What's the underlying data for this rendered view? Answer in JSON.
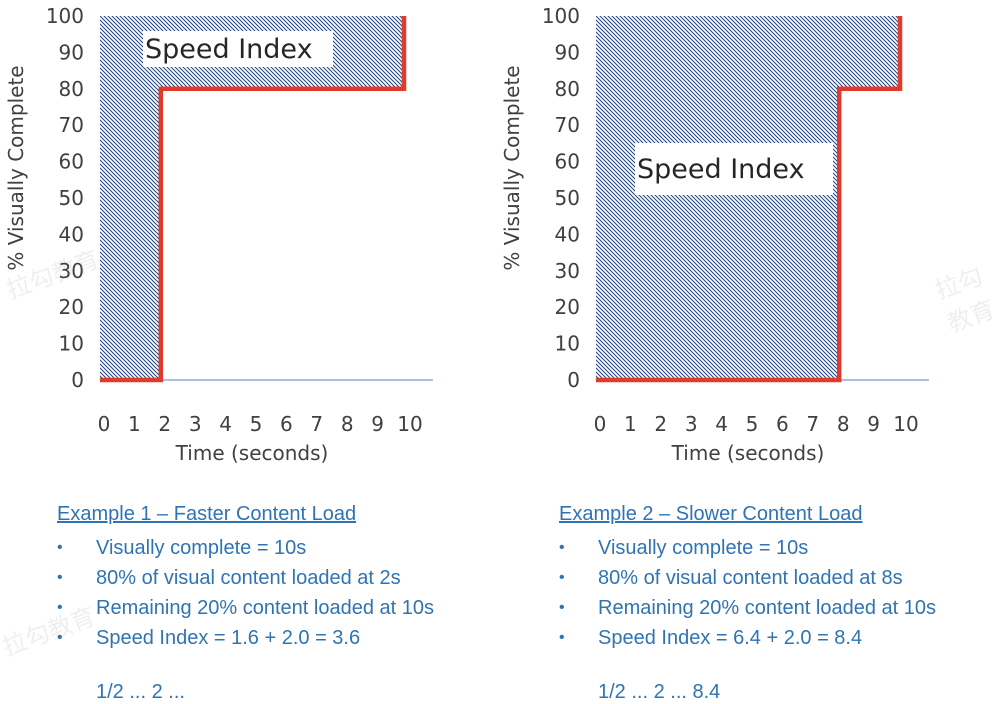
{
  "colors": {
    "step_line": "#e03a2b",
    "hatch": "#1f3f8a",
    "axis": "#8faadc",
    "text_blue": "#2e74b5"
  },
  "chart_data": [
    {
      "type": "line",
      "ylabel": "% Visually Complete",
      "xlabel": "Time (seconds)",
      "xlim": [
        0,
        10
      ],
      "ylim": [
        0,
        100
      ],
      "x_ticks": [
        "0",
        "1",
        "2",
        "3",
        "4",
        "5",
        "6",
        "7",
        "8",
        "9",
        "10"
      ],
      "y_ticks": [
        "0",
        "10",
        "20",
        "30",
        "40",
        "50",
        "60",
        "70",
        "80",
        "90",
        "100"
      ],
      "series": [
        {
          "x": [
            0,
            2,
            2,
            10,
            10
          ],
          "y": [
            0,
            0,
            80,
            80,
            100
          ]
        }
      ],
      "shaded_area": "Speed Index",
      "annotation": "Speed Index"
    },
    {
      "type": "line",
      "ylabel": "% Visually Complete",
      "xlabel": "Time (seconds)",
      "xlim": [
        0,
        10
      ],
      "ylim": [
        0,
        100
      ],
      "x_ticks": [
        "0",
        "1",
        "2",
        "3",
        "4",
        "5",
        "6",
        "7",
        "8",
        "9",
        "10"
      ],
      "y_ticks": [
        "0",
        "10",
        "20",
        "30",
        "40",
        "50",
        "60",
        "70",
        "80",
        "90",
        "100"
      ],
      "series": [
        {
          "x": [
            0,
            8,
            8,
            10,
            10
          ],
          "y": [
            0,
            0,
            80,
            80,
            100
          ]
        }
      ],
      "shaded_area": "Speed Index",
      "annotation": "Speed Index"
    }
  ],
  "examples": [
    {
      "title": "Example 1 – Faster Content Load",
      "bullet": "•",
      "items": [
        "Visually complete = 10s",
        "80% of visual content loaded at 2s",
        "Remaining 20% content loaded at 10s",
        "Speed Index = 1.6 + 2.0 = 3.6"
      ],
      "cut_text": "1/2 ... 2 ..."
    },
    {
      "title": "Example 2 – Slower Content Load",
      "bullet": "•",
      "items": [
        "Visually complete = 10s",
        "80% of visual content loaded at 8s",
        "Remaining 20% content loaded at 10s",
        "Speed Index = 6.4 + 2.0 = 8.4"
      ],
      "cut_text": "1/2 ... 2 ... 8.4"
    }
  ],
  "watermark": "拉勾教育"
}
